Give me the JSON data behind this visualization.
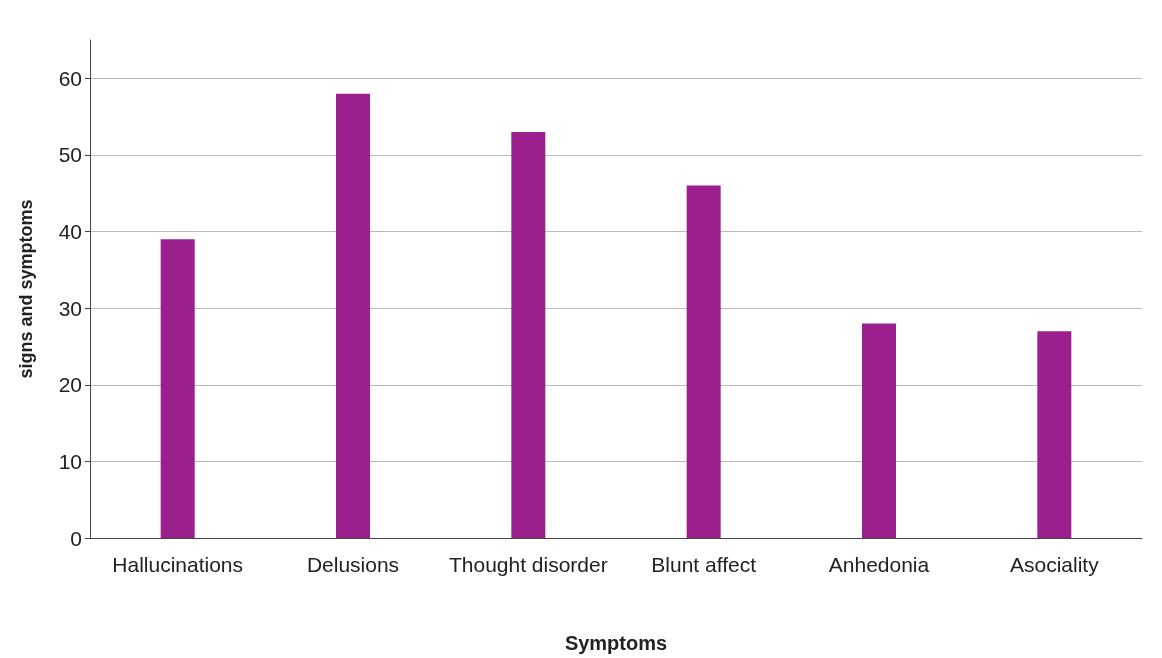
{
  "chart_data": {
    "type": "bar",
    "xlabel": "Symptoms",
    "ylabel": "signs and symptoms",
    "categories": [
      "Hallucinations",
      "Delusions",
      "Thought disorder",
      "Blunt affect",
      "Anhedonia",
      "Asociality"
    ],
    "values": [
      39,
      58,
      53,
      46,
      28,
      27
    ],
    "color": "#9c1f8e",
    "ylim": [
      0,
      65
    ],
    "yticks": [
      0,
      10,
      20,
      30,
      40,
      50,
      60
    ],
    "grid": "y"
  }
}
